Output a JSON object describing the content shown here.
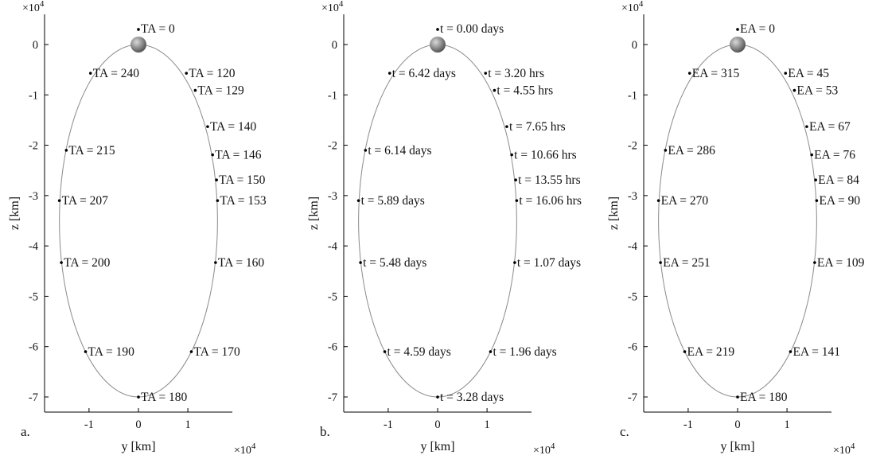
{
  "colors": {
    "orbit": "#8a8a8a",
    "axis": "#000000",
    "point": "#000000",
    "moon": "#8c8c8c"
  },
  "icons": {
    "moon": "moon-icon"
  },
  "chart_data": [
    {
      "type": "scatter",
      "panel_label": "a.",
      "xlabel": "y [km]",
      "ylabel": "z [km]",
      "x_multiplier": "×10",
      "x_exponent": "4",
      "y_multiplier": "×10",
      "y_exponent": "4",
      "xlim": [
        -1.9,
        1.9
      ],
      "ylim": [
        -7.3,
        0.6
      ],
      "x_ticks": [
        -1,
        0,
        1
      ],
      "y_ticks": [
        0,
        -1,
        -2,
        -3,
        -4,
        -5,
        -6,
        -7
      ],
      "grid": false,
      "orbit": {
        "type": "ellipse",
        "center": [
          0,
          -3.5
        ],
        "semi_axis_y": 1.6,
        "semi_axis_z": 3.5
      },
      "moon": {
        "x": 0,
        "y": 0
      },
      "points": [
        {
          "label": "TA = 0",
          "x": 0,
          "y": 0.3
        },
        {
          "label": "TA = 120",
          "x": 0.97,
          "y": -0.57
        },
        {
          "label": "TA = 129",
          "x": 1.15,
          "y": -0.91
        },
        {
          "label": "TA = 140",
          "x": 1.4,
          "y": -1.63
        },
        {
          "label": "TA = 146",
          "x": 1.5,
          "y": -2.19
        },
        {
          "label": "TA = 150",
          "x": 1.58,
          "y": -2.69
        },
        {
          "label": "TA = 153",
          "x": 1.6,
          "y": -3.1
        },
        {
          "label": "TA = 160",
          "x": 1.56,
          "y": -4.33
        },
        {
          "label": "TA = 170",
          "x": 1.07,
          "y": -6.1
        },
        {
          "label": "TA = 180",
          "x": 0,
          "y": -7.0
        },
        {
          "label": "TA = 190",
          "x": -1.07,
          "y": -6.1
        },
        {
          "label": "TA = 200",
          "x": -1.56,
          "y": -4.33
        },
        {
          "label": "TA = 207",
          "x": -1.6,
          "y": -3.1
        },
        {
          "label": "TA = 215",
          "x": -1.46,
          "y": -2.1
        },
        {
          "label": "TA = 240",
          "x": -0.97,
          "y": -0.57
        }
      ]
    },
    {
      "type": "scatter",
      "panel_label": "b.",
      "xlabel": "y [km]",
      "ylabel": "z [km]",
      "x_multiplier": "×10",
      "x_exponent": "4",
      "y_multiplier": "×10",
      "y_exponent": "4",
      "xlim": [
        -1.9,
        1.9
      ],
      "ylim": [
        -7.3,
        0.6
      ],
      "x_ticks": [
        -1,
        0,
        1
      ],
      "y_ticks": [
        0,
        -1,
        -2,
        -3,
        -4,
        -5,
        -6,
        -7
      ],
      "grid": false,
      "orbit": {
        "type": "ellipse",
        "center": [
          0,
          -3.5
        ],
        "semi_axis_y": 1.6,
        "semi_axis_z": 3.5
      },
      "moon": {
        "x": 0,
        "y": 0
      },
      "points": [
        {
          "label": "t = 0.00 days",
          "x": 0,
          "y": 0.3
        },
        {
          "label": "t = 3.20 hrs",
          "x": 0.97,
          "y": -0.57
        },
        {
          "label": "t = 4.55 hrs",
          "x": 1.15,
          "y": -0.91
        },
        {
          "label": "t = 7.65 hrs",
          "x": 1.4,
          "y": -1.63
        },
        {
          "label": "t = 10.66 hrs",
          "x": 1.5,
          "y": -2.19
        },
        {
          "label": "t = 13.55 hrs",
          "x": 1.58,
          "y": -2.69
        },
        {
          "label": "t = 16.06 hrs",
          "x": 1.6,
          "y": -3.1
        },
        {
          "label": "t = 1.07 days",
          "x": 1.56,
          "y": -4.33
        },
        {
          "label": "t = 1.96 days",
          "x": 1.07,
          "y": -6.1
        },
        {
          "label": "t = 3.28 days",
          "x": 0,
          "y": -7.0
        },
        {
          "label": "t = 4.59 days",
          "x": -1.07,
          "y": -6.1
        },
        {
          "label": "t = 5.48 days",
          "x": -1.56,
          "y": -4.33
        },
        {
          "label": "t = 5.89 days",
          "x": -1.6,
          "y": -3.1
        },
        {
          "label": "t = 6.14 days",
          "x": -1.46,
          "y": -2.1
        },
        {
          "label": "t = 6.42 days",
          "x": -0.97,
          "y": -0.57
        }
      ]
    },
    {
      "type": "scatter",
      "panel_label": "c.",
      "xlabel": "y [km]",
      "ylabel": "z [km]",
      "x_multiplier": "×10",
      "x_exponent": "4",
      "y_multiplier": "×10",
      "y_exponent": "4",
      "xlim": [
        -1.9,
        1.9
      ],
      "ylim": [
        -7.3,
        0.6
      ],
      "x_ticks": [
        -1,
        0,
        1
      ],
      "y_ticks": [
        0,
        -1,
        -2,
        -3,
        -4,
        -5,
        -6,
        -7
      ],
      "grid": false,
      "orbit": {
        "type": "ellipse",
        "center": [
          0,
          -3.5
        ],
        "semi_axis_y": 1.6,
        "semi_axis_z": 3.5
      },
      "moon": {
        "x": 0,
        "y": 0
      },
      "points": [
        {
          "label": "EA = 0",
          "x": 0,
          "y": 0.3
        },
        {
          "label": "EA = 45",
          "x": 0.97,
          "y": -0.57
        },
        {
          "label": "EA = 53",
          "x": 1.15,
          "y": -0.91
        },
        {
          "label": "EA = 67",
          "x": 1.4,
          "y": -1.63
        },
        {
          "label": "EA = 76",
          "x": 1.5,
          "y": -2.19
        },
        {
          "label": "EA = 84",
          "x": 1.58,
          "y": -2.69
        },
        {
          "label": "EA = 90",
          "x": 1.6,
          "y": -3.1
        },
        {
          "label": "EA = 109",
          "x": 1.56,
          "y": -4.33
        },
        {
          "label": "EA = 141",
          "x": 1.07,
          "y": -6.1
        },
        {
          "label": "EA = 180",
          "x": 0,
          "y": -7.0
        },
        {
          "label": "EA = 219",
          "x": -1.07,
          "y": -6.1
        },
        {
          "label": "EA = 251",
          "x": -1.56,
          "y": -4.33
        },
        {
          "label": "EA = 270",
          "x": -1.6,
          "y": -3.1
        },
        {
          "label": "EA = 286",
          "x": -1.46,
          "y": -2.1
        },
        {
          "label": "EA = 315",
          "x": -0.97,
          "y": -0.57
        }
      ]
    }
  ]
}
